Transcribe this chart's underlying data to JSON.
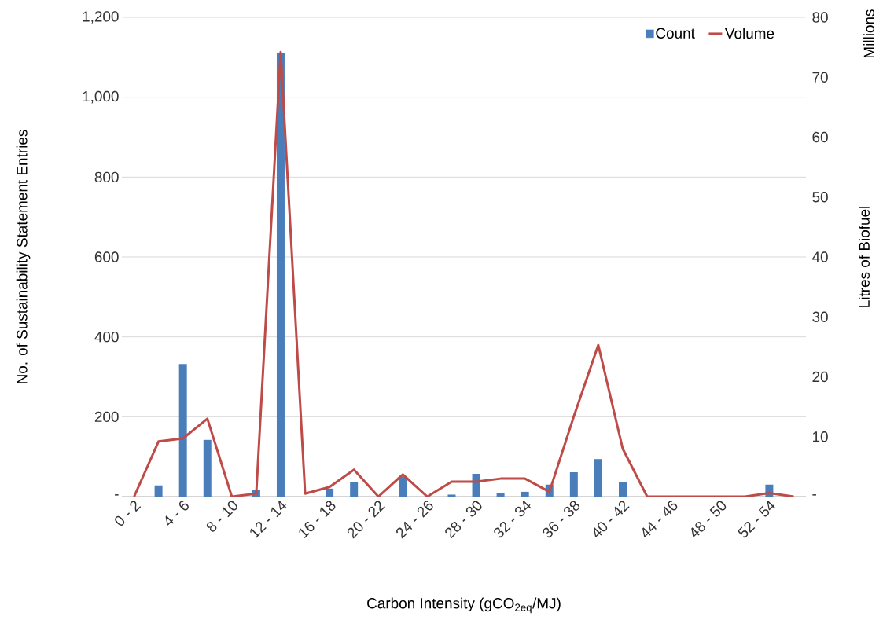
{
  "chart_data": {
    "type": "bar",
    "xlabel": "Carbon Intensity (gCO$_{2eq}$/MJ)",
    "ylabel": "No. of Sustainability Statement Entries",
    "y2label": "Litres of Biofuel",
    "annotations": [
      "Millions"
    ],
    "categories": [
      "0 - 2",
      null,
      "4 - 6",
      null,
      "8 - 10",
      null,
      "12 - 14",
      null,
      "16 - 18",
      null,
      "20 - 22",
      null,
      "24 - 26",
      null,
      "28 - 30",
      null,
      "32 - 34",
      null,
      "36 - 38",
      null,
      "40 - 42",
      null,
      "44 - 46",
      null,
      "48 - 50",
      null,
      "52 - 54",
      null
    ],
    "series": [
      {
        "name": "Count",
        "color": "#4a7ebb",
        "values": [
          0,
          28,
          332,
          142,
          0,
          16,
          1110,
          0,
          20,
          37,
          0,
          50,
          0,
          5,
          57,
          8,
          12,
          30,
          61,
          94,
          36,
          0,
          0,
          0,
          0,
          0,
          30,
          0
        ]
      },
      {
        "name": "Volume",
        "type": "line",
        "axis": "y2",
        "color": "#be4b48",
        "values": [
          0,
          9.2,
          9.7,
          13.0,
          0,
          0.5,
          74.2,
          0.5,
          1.6,
          4.5,
          0,
          3.7,
          0,
          2.5,
          2.5,
          3.0,
          3.0,
          0.8,
          13.4,
          25.3,
          8.0,
          0,
          0,
          0,
          0,
          0,
          0.6,
          0
        ]
      }
    ],
    "ylim": [
      0,
      1200
    ],
    "yticks": [
      {
        "value": 0,
        "label": "-"
      },
      {
        "value": 200,
        "label": "200"
      },
      {
        "value": 400,
        "label": "400"
      },
      {
        "value": 600,
        "label": "600"
      },
      {
        "value": 800,
        "label": "800"
      },
      {
        "value": 1000,
        "label": "1,000"
      },
      {
        "value": 1200,
        "label": "1,200"
      }
    ],
    "y2lim": [
      0,
      80
    ],
    "y2ticks": [
      {
        "value": 0,
        "label": "-"
      },
      10,
      20,
      30,
      40,
      50,
      60,
      70,
      80
    ],
    "grid": "y",
    "legend": "top right",
    "marker": "none",
    "line_style": "solid"
  }
}
